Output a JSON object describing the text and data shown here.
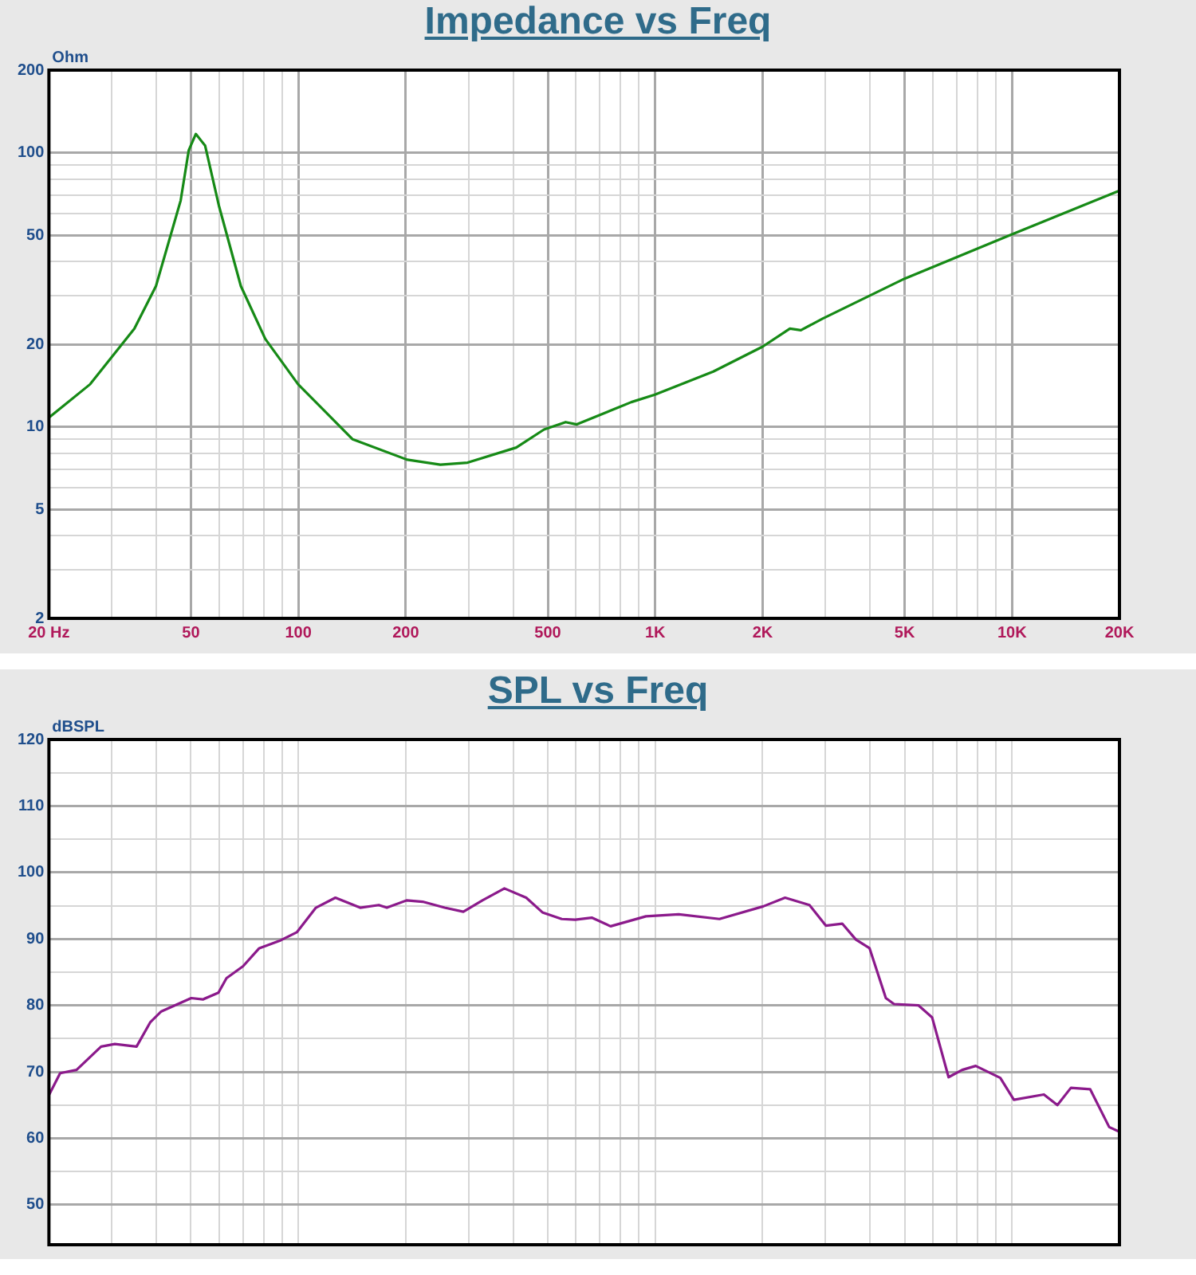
{
  "chart_data": [
    {
      "type": "line",
      "title": "Impedance vs Freq",
      "ylabel": "Ohm",
      "log": "xy",
      "grid": true,
      "xlim": [
        20,
        20000
      ],
      "ylim": [
        2,
        200
      ],
      "xticks": [
        {
          "value": 20,
          "label": "20 Hz"
        },
        {
          "value": 30,
          "label": null
        },
        {
          "value": 40,
          "label": null
        },
        50,
        {
          "value": 60,
          "label": null
        },
        {
          "value": 70,
          "label": null
        },
        {
          "value": 80,
          "label": null
        },
        {
          "value": 90,
          "label": null
        },
        100,
        200,
        {
          "value": 300,
          "label": null
        },
        {
          "value": 400,
          "label": null
        },
        500,
        {
          "value": 600,
          "label": null
        },
        {
          "value": 700,
          "label": null
        },
        {
          "value": 800,
          "label": null
        },
        {
          "value": 900,
          "label": null
        },
        {
          "value": 1000,
          "label": "1K"
        },
        {
          "value": 2000,
          "label": "2K"
        },
        {
          "value": 3000,
          "label": null
        },
        {
          "value": 4000,
          "label": null
        },
        {
          "value": 5000,
          "label": "5K"
        },
        {
          "value": 6000,
          "label": null
        },
        {
          "value": 7000,
          "label": null
        },
        {
          "value": 8000,
          "label": null
        },
        {
          "value": 9000,
          "label": null
        },
        {
          "value": 10000,
          "label": "10K"
        },
        {
          "value": 20000,
          "label": "20K"
        }
      ],
      "yticks": [
        2,
        {
          "value": 3,
          "label": null
        },
        {
          "value": 4,
          "label": null
        },
        5,
        {
          "value": 6,
          "label": null
        },
        {
          "value": 7,
          "label": null
        },
        {
          "value": 8,
          "label": null
        },
        {
          "value": 9,
          "label": null
        },
        10,
        20,
        {
          "value": 30,
          "label": null
        },
        {
          "value": 40,
          "label": null
        },
        50,
        {
          "value": 60,
          "label": null
        },
        {
          "value": 70,
          "label": null
        },
        {
          "value": 80,
          "label": null
        },
        {
          "value": 90,
          "label": null
        },
        100,
        200
      ],
      "series": [
        {
          "color": "#168a16",
          "x": [
            20,
            26.1,
            34.7,
            39.9,
            46.8,
            49.3,
            51.6,
            54.8,
            59.9,
            69,
            80.8,
            99.8,
            142,
            202,
            250,
            298,
            408,
            488,
            561,
            603,
            857,
            998,
            1455,
            2000,
            2385,
            2560,
            2945,
            5000,
            9940,
            20000
          ],
          "values": [
            10.8,
            14.3,
            22.8,
            32.6,
            66.9,
            102,
            117,
            106,
            64,
            32.6,
            20.9,
            14.3,
            9.0,
            7.58,
            7.27,
            7.4,
            8.4,
            9.77,
            10.4,
            10.2,
            12.3,
            13.1,
            15.9,
            19.6,
            22.8,
            22.5,
            24.8,
            34.7,
            50.2,
            72.7
          ]
        }
      ]
    },
    {
      "type": "line",
      "title": "SPL vs Freq",
      "ylabel": "dBSPL",
      "log": "x",
      "grid": true,
      "tick_labels": "y",
      "xlim": [
        20,
        20000
      ],
      "ylim": [
        44,
        120
      ],
      "xticks": [
        {
          "value": 20,
          "label": null
        },
        {
          "value": 30,
          "label": null
        },
        {
          "value": 40,
          "label": null
        },
        {
          "value": 50,
          "label": null
        },
        {
          "value": 60,
          "label": null
        },
        {
          "value": 70,
          "label": null
        },
        {
          "value": 80,
          "label": null
        },
        {
          "value": 90,
          "label": null
        },
        {
          "value": 100,
          "label": null
        },
        {
          "value": 200,
          "label": null
        },
        {
          "value": 300,
          "label": null
        },
        {
          "value": 400,
          "label": null
        },
        {
          "value": 500,
          "label": null
        },
        {
          "value": 600,
          "label": null
        },
        {
          "value": 700,
          "label": null
        },
        {
          "value": 800,
          "label": null
        },
        {
          "value": 900,
          "label": null
        },
        {
          "value": 1000,
          "label": null
        },
        {
          "value": 2000,
          "label": null
        },
        {
          "value": 3000,
          "label": null
        },
        {
          "value": 4000,
          "label": null
        },
        {
          "value": 5000,
          "label": null
        },
        {
          "value": 6000,
          "label": null
        },
        {
          "value": 7000,
          "label": null
        },
        {
          "value": 8000,
          "label": null
        },
        {
          "value": 9000,
          "label": null
        },
        {
          "value": 10000,
          "label": null
        },
        {
          "value": 20000,
          "label": null
        }
      ],
      "yticks": [
        50,
        {
          "value": 55,
          "label": null
        },
        60,
        {
          "value": 65,
          "label": null
        },
        70,
        {
          "value": 75,
          "label": null
        },
        80,
        {
          "value": 85,
          "label": null
        },
        90,
        {
          "value": 95,
          "label": null
        },
        100,
        {
          "value": 105,
          "label": null
        },
        110,
        {
          "value": 115,
          "label": null
        },
        120
      ],
      "series": [
        {
          "color": "#8b1a8b",
          "x": [
            20,
            21.5,
            23.9,
            28,
            30.6,
            35.2,
            38.5,
            41.3,
            50.1,
            54,
            59.7,
            62.9,
            70,
            77.7,
            89.3,
            99,
            112,
            127,
            149,
            168,
            177,
            201,
            223,
            257,
            290,
            328,
            378,
            435,
            483,
            547,
            597,
            664,
            750,
            942,
            1164,
            1514,
            2009,
            2312,
            2706,
            3007,
            3343,
            3652,
            3988,
            4430,
            4670,
            5470,
            5970,
            6640,
            7250,
            7910,
            9270,
            10120,
            12280,
            13400,
            14620,
            16550,
            18720,
            20000
          ],
          "values": [
            66.5,
            69.8,
            70.3,
            73.8,
            74.2,
            73.8,
            77.5,
            79.1,
            81.1,
            80.9,
            81.9,
            84.1,
            85.9,
            88.6,
            89.8,
            91.0,
            94.7,
            96.2,
            94.7,
            95.1,
            94.7,
            95.8,
            95.6,
            94.7,
            94.1,
            95.8,
            97.6,
            96.2,
            94.0,
            93.0,
            92.9,
            93.2,
            91.9,
            93.4,
            93.7,
            93.0,
            94.9,
            96.2,
            95.1,
            92.0,
            92.3,
            89.9,
            88.6,
            81.1,
            80.2,
            80.0,
            78.2,
            69.2,
            70.3,
            70.9,
            69.1,
            65.8,
            66.6,
            65.0,
            67.6,
            67.4,
            61.7,
            61.0
          ]
        }
      ]
    }
  ]
}
